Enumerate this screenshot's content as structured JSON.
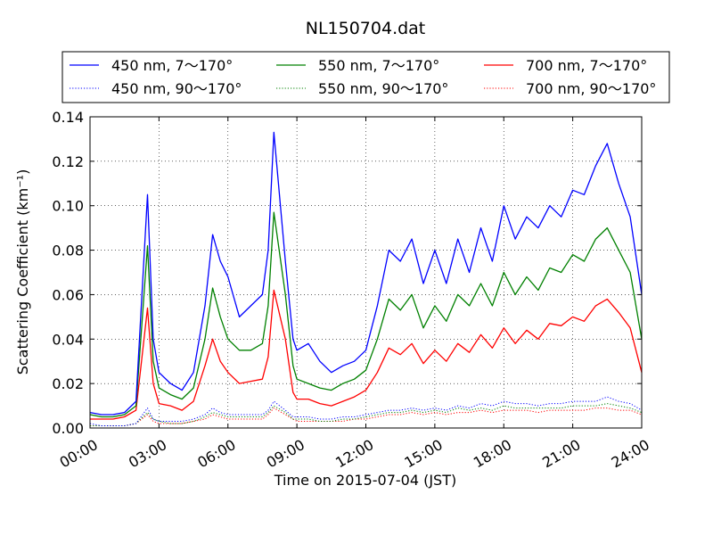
{
  "chart_data": {
    "type": "line",
    "title": "NL150704.dat",
    "xlabel": "Time on 2015-07-04 (JST)",
    "ylabel": "Scattering Coefficient (km⁻¹)",
    "xlim": [
      "00:00",
      "24:00"
    ],
    "ylim": [
      0,
      0.14
    ],
    "x_ticks": [
      "00:00",
      "03:00",
      "06:00",
      "09:00",
      "12:00",
      "15:00",
      "18:00",
      "21:00",
      "24:00"
    ],
    "y_ticks": [
      "0.00",
      "0.02",
      "0.04",
      "0.06",
      "0.08",
      "0.10",
      "0.12",
      "0.14"
    ],
    "grid": true,
    "legend_placement": "top (above plot)",
    "x": [
      "00:00",
      "00:30",
      "01:00",
      "01:30",
      "02:00",
      "02:30",
      "02:45",
      "03:00",
      "03:30",
      "04:00",
      "04:30",
      "05:00",
      "05:20",
      "05:40",
      "06:00",
      "06:30",
      "07:00",
      "07:30",
      "07:45",
      "08:00",
      "08:30",
      "08:50",
      "09:00",
      "09:30",
      "10:00",
      "10:30",
      "11:00",
      "11:30",
      "12:00",
      "12:30",
      "13:00",
      "13:30",
      "14:00",
      "14:30",
      "15:00",
      "15:30",
      "16:00",
      "16:30",
      "17:00",
      "17:30",
      "18:00",
      "18:30",
      "19:00",
      "19:30",
      "20:00",
      "20:30",
      "21:00",
      "21:30",
      "22:00",
      "22:30",
      "23:00",
      "23:30",
      "24:00"
    ],
    "series": [
      {
        "name": "450 nm, 7～170°",
        "color": "#0000ff",
        "style": "solid",
        "values": [
          0.007,
          0.006,
          0.006,
          0.007,
          0.012,
          0.105,
          0.04,
          0.025,
          0.02,
          0.017,
          0.025,
          0.055,
          0.087,
          0.075,
          0.068,
          0.05,
          0.055,
          0.06,
          0.08,
          0.133,
          0.075,
          0.04,
          0.035,
          0.038,
          0.03,
          0.025,
          0.028,
          0.03,
          0.035,
          0.055,
          0.08,
          0.075,
          0.085,
          0.065,
          0.08,
          0.065,
          0.085,
          0.07,
          0.09,
          0.075,
          0.1,
          0.085,
          0.095,
          0.09,
          0.1,
          0.095,
          0.107,
          0.105,
          0.118,
          0.128,
          0.11,
          0.095,
          0.06
        ]
      },
      {
        "name": "550 nm, 7～170°",
        "color": "#008000",
        "style": "solid",
        "values": [
          0.006,
          0.005,
          0.005,
          0.006,
          0.01,
          0.082,
          0.03,
          0.018,
          0.015,
          0.013,
          0.018,
          0.04,
          0.063,
          0.05,
          0.04,
          0.035,
          0.035,
          0.038,
          0.055,
          0.097,
          0.06,
          0.028,
          0.022,
          0.02,
          0.018,
          0.017,
          0.02,
          0.022,
          0.026,
          0.04,
          0.058,
          0.053,
          0.06,
          0.045,
          0.055,
          0.048,
          0.06,
          0.055,
          0.065,
          0.055,
          0.07,
          0.06,
          0.068,
          0.062,
          0.072,
          0.07,
          0.078,
          0.075,
          0.085,
          0.09,
          0.08,
          0.07,
          0.04
        ]
      },
      {
        "name": "700 nm, 7～170°",
        "color": "#ff0000",
        "style": "solid",
        "values": [
          0.004,
          0.004,
          0.004,
          0.005,
          0.008,
          0.054,
          0.02,
          0.011,
          0.01,
          0.008,
          0.012,
          0.028,
          0.04,
          0.03,
          0.025,
          0.02,
          0.021,
          0.022,
          0.032,
          0.062,
          0.04,
          0.016,
          0.013,
          0.013,
          0.011,
          0.01,
          0.012,
          0.014,
          0.017,
          0.025,
          0.036,
          0.033,
          0.038,
          0.029,
          0.035,
          0.03,
          0.038,
          0.034,
          0.042,
          0.036,
          0.045,
          0.038,
          0.044,
          0.04,
          0.047,
          0.046,
          0.05,
          0.048,
          0.055,
          0.058,
          0.052,
          0.045,
          0.025
        ]
      },
      {
        "name": "450 nm, 90～170°",
        "color": "#0000ff",
        "style": "dotted",
        "values": [
          0.002,
          0.001,
          0.001,
          0.001,
          0.002,
          0.009,
          0.004,
          0.003,
          0.003,
          0.003,
          0.004,
          0.006,
          0.009,
          0.007,
          0.006,
          0.006,
          0.006,
          0.006,
          0.008,
          0.012,
          0.008,
          0.005,
          0.005,
          0.005,
          0.004,
          0.004,
          0.005,
          0.005,
          0.006,
          0.007,
          0.008,
          0.008,
          0.009,
          0.008,
          0.009,
          0.008,
          0.01,
          0.009,
          0.011,
          0.01,
          0.012,
          0.011,
          0.011,
          0.01,
          0.011,
          0.011,
          0.012,
          0.012,
          0.012,
          0.014,
          0.012,
          0.011,
          0.008
        ]
      },
      {
        "name": "550 nm, 90～170°",
        "color": "#008000",
        "style": "dotted",
        "values": [
          0.001,
          0.001,
          0.001,
          0.001,
          0.002,
          0.007,
          0.004,
          0.003,
          0.002,
          0.002,
          0.003,
          0.005,
          0.007,
          0.006,
          0.005,
          0.005,
          0.005,
          0.005,
          0.007,
          0.01,
          0.007,
          0.004,
          0.004,
          0.004,
          0.003,
          0.003,
          0.004,
          0.004,
          0.005,
          0.006,
          0.007,
          0.007,
          0.008,
          0.007,
          0.008,
          0.007,
          0.009,
          0.008,
          0.009,
          0.008,
          0.01,
          0.009,
          0.009,
          0.009,
          0.009,
          0.009,
          0.01,
          0.01,
          0.01,
          0.011,
          0.01,
          0.009,
          0.007
        ]
      },
      {
        "name": "700 nm, 90～170°",
        "color": "#ff0000",
        "style": "dotted",
        "values": [
          0.001,
          0.001,
          0.001,
          0.001,
          0.002,
          0.006,
          0.003,
          0.002,
          0.002,
          0.002,
          0.003,
          0.004,
          0.006,
          0.005,
          0.004,
          0.004,
          0.004,
          0.004,
          0.006,
          0.009,
          0.006,
          0.004,
          0.003,
          0.003,
          0.003,
          0.003,
          0.003,
          0.004,
          0.004,
          0.005,
          0.006,
          0.006,
          0.007,
          0.006,
          0.007,
          0.006,
          0.007,
          0.007,
          0.008,
          0.007,
          0.008,
          0.008,
          0.008,
          0.007,
          0.008,
          0.008,
          0.008,
          0.008,
          0.009,
          0.009,
          0.008,
          0.008,
          0.006
        ]
      }
    ]
  }
}
